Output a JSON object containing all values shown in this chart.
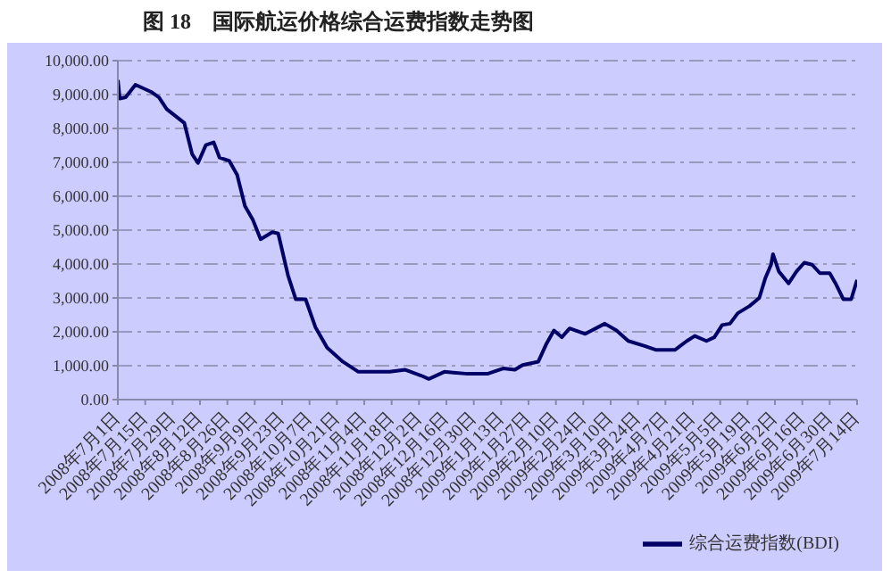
{
  "chart_data": {
    "type": "line",
    "title": "图 18　国际航运价格综合运费指数走势图",
    "x": [
      "2008-07-01",
      "2008-07-02",
      "2008-07-05",
      "2008-07-10",
      "2008-07-18",
      "2008-07-22",
      "2008-07-26",
      "2008-08-04",
      "2008-08-08",
      "2008-08-11",
      "2008-08-15",
      "2008-08-19",
      "2008-08-22",
      "2008-08-27",
      "2008-08-31",
      "2008-09-04",
      "2008-09-08",
      "2008-09-12",
      "2008-09-18",
      "2008-09-21",
      "2008-09-26",
      "2008-09-30",
      "2008-10-05",
      "2008-10-10",
      "2008-10-16",
      "2008-10-24",
      "2008-11-01",
      "2008-11-17",
      "2008-11-25",
      "2008-12-03",
      "2008-12-07",
      "2008-12-15",
      "2008-12-27",
      "2009-01-06",
      "2009-01-14",
      "2009-01-20",
      "2009-01-24",
      "2009-02-01",
      "2009-02-05",
      "2009-02-09",
      "2009-02-13",
      "2009-02-17",
      "2009-02-25",
      "2009-03-07",
      "2009-03-13",
      "2009-03-19",
      "2009-03-27",
      "2009-04-02",
      "2009-04-12",
      "2009-04-18",
      "2009-04-22",
      "2009-04-28",
      "2009-05-02",
      "2009-05-06",
      "2009-05-10",
      "2009-05-14",
      "2009-05-20",
      "2009-05-25",
      "2009-05-28",
      "2009-05-31",
      "2009-06-01",
      "2009-06-04",
      "2009-06-09",
      "2009-06-13",
      "2009-06-17",
      "2009-06-21",
      "2009-06-25",
      "2009-06-30",
      "2009-07-03",
      "2009-07-07",
      "2009-07-11",
      "2009-07-14"
    ],
    "series": [
      {
        "name": "综合运费指数(BDI)",
        "color": "#000066",
        "values": [
          9430,
          8880,
          8920,
          9290,
          9080,
          8920,
          8570,
          8160,
          7240,
          6980,
          7510,
          7590,
          7140,
          7040,
          6630,
          5710,
          5310,
          4730,
          4940,
          4900,
          3670,
          2960,
          2960,
          2140,
          1530,
          1120,
          820,
          820,
          880,
          710,
          610,
          820,
          760,
          760,
          920,
          880,
          1020,
          1120,
          1630,
          2040,
          1840,
          2100,
          1940,
          2240,
          2040,
          1730,
          1590,
          1470,
          1470,
          1730,
          1880,
          1730,
          1840,
          2200,
          2240,
          2550,
          2760,
          3000,
          3570,
          3980,
          4290,
          3780,
          3430,
          3780,
          4040,
          3980,
          3730,
          3730,
          3430,
          2960,
          2960,
          3530
        ]
      }
    ],
    "xlim": [
      "2008-07-01",
      "2009-07-14"
    ],
    "xticks": [
      {
        "value": "2008-07-01",
        "label": "2008年7月1日"
      },
      {
        "value": "2008-07-15",
        "label": "2008年7月15日"
      },
      {
        "value": "2008-07-29",
        "label": "2008年7月29日"
      },
      {
        "value": "2008-08-12",
        "label": "2008年8月12日"
      },
      {
        "value": "2008-08-26",
        "label": "2008年8月26日"
      },
      {
        "value": "2008-09-09",
        "label": "2008年9月9日"
      },
      {
        "value": "2008-09-23",
        "label": "2008年9月23日"
      },
      {
        "value": "2008-10-07",
        "label": "2008年10月7日"
      },
      {
        "value": "2008-10-21",
        "label": "2008年10月21日"
      },
      {
        "value": "2008-11-04",
        "label": "2008年11月4日"
      },
      {
        "value": "2008-11-18",
        "label": "2008年11月18日"
      },
      {
        "value": "2008-12-02",
        "label": "2008年12月2日"
      },
      {
        "value": "2008-12-16",
        "label": "2008年12月16日"
      },
      {
        "value": "2008-12-30",
        "label": "2008年12月30日"
      },
      {
        "value": "2009-01-13",
        "label": "2009年1月13日"
      },
      {
        "value": "2009-01-27",
        "label": "2009年1月27日"
      },
      {
        "value": "2009-02-10",
        "label": "2009年2月10日"
      },
      {
        "value": "2009-02-24",
        "label": "2009年2月24日"
      },
      {
        "value": "2009-03-10",
        "label": "2009年3月10日"
      },
      {
        "value": "2009-03-24",
        "label": "2009年3月24日"
      },
      {
        "value": "2009-04-07",
        "label": "2009年4月7日"
      },
      {
        "value": "2009-04-21",
        "label": "2009年4月21日"
      },
      {
        "value": "2009-05-05",
        "label": "2009年5月5日"
      },
      {
        "value": "2009-05-19",
        "label": "2009年5月19日"
      },
      {
        "value": "2009-06-02",
        "label": "2009年6月2日"
      },
      {
        "value": "2009-06-16",
        "label": "2009年6月16日"
      },
      {
        "value": "2009-06-30",
        "label": "2009年6月30日"
      },
      {
        "value": "2009-07-14",
        "label": "2009年7月14日"
      }
    ],
    "ylim": [
      0,
      10000
    ],
    "yticks": [
      {
        "value": 0,
        "label": "0.00"
      },
      {
        "value": 1000,
        "label": "1,000.00"
      },
      {
        "value": 2000,
        "label": "2,000.00"
      },
      {
        "value": 3000,
        "label": "3,000.00"
      },
      {
        "value": 4000,
        "label": "4,000.00"
      },
      {
        "value": 5000,
        "label": "5,000.00"
      },
      {
        "value": 6000,
        "label": "6,000.00"
      },
      {
        "value": 7000,
        "label": "7,000.00"
      },
      {
        "value": 8000,
        "label": "8,000.00"
      },
      {
        "value": 9000,
        "label": "9,000.00"
      },
      {
        "value": 10000,
        "label": "10,000.00"
      }
    ],
    "grid": "y",
    "legend": "bottom right",
    "line_style": "solid"
  }
}
